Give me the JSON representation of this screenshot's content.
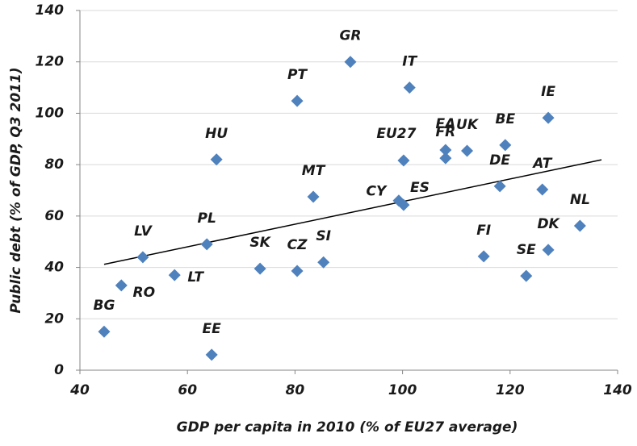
{
  "chart_data": {
    "type": "scatter",
    "x_label": "GDP per capita in 2010 (% of EU27 average)",
    "y_label": "Public debt (% of GDP, Q3 2011)",
    "labels": [
      "BG",
      "RO",
      "LV",
      "LT",
      "PL",
      "HU",
      "EE",
      "SK",
      "CZ",
      "SI",
      "MT",
      "PT",
      "GR",
      "IT",
      "EU27",
      "CY",
      "ES",
      "EA",
      "FR",
      "UK",
      "BE",
      "IE",
      "DE",
      "AT",
      "NL",
      "DK",
      "FI",
      "SE"
    ],
    "x": [
      44.5,
      47.7,
      51.7,
      57.6,
      63.6,
      65.4,
      64.5,
      73.5,
      80.4,
      85.3,
      83.4,
      80.4,
      90.3,
      101.3,
      100.2,
      99.3,
      100.2,
      108,
      108,
      112,
      119.1,
      127.1,
      118.1,
      126,
      133,
      127.1,
      115.1,
      123
    ],
    "values": [
      15,
      33,
      44,
      37,
      49,
      82,
      6,
      39.5,
      38.6,
      42,
      67.5,
      104.8,
      120,
      110,
      81.6,
      66,
      64.3,
      85.7,
      82.5,
      85.4,
      87.6,
      98.2,
      71.6,
      70.3,
      56.2,
      46.8,
      44.3,
      36.7
    ],
    "color": "#4f81bd",
    "trendline": {
      "x": [
        44.5,
        137
      ],
      "y": [
        41.2,
        81.9
      ],
      "color": "#000000"
    },
    "xlim": [
      40,
      140
    ],
    "xticks": [
      40,
      60,
      80,
      100,
      120,
      140
    ],
    "ylim": [
      0,
      140
    ],
    "yticks": [
      0,
      20,
      40,
      60,
      80,
      100,
      120,
      140
    ],
    "grid": true
  }
}
